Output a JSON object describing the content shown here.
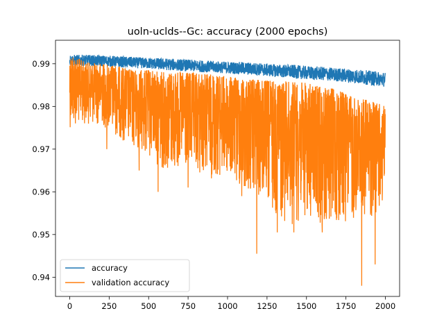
{
  "chart_data": {
    "type": "line",
    "title": "uoln-uclds--Gc: accuracy (2000 epochs)",
    "xlabel": "",
    "ylabel": "",
    "xlim": [
      -90,
      2090
    ],
    "ylim": [
      0.9355,
      0.9955
    ],
    "x_ticks": [
      0,
      250,
      500,
      750,
      1000,
      1250,
      1500,
      1750,
      2000
    ],
    "y_ticks": [
      0.94,
      0.95,
      0.96,
      0.97,
      0.98,
      0.99
    ],
    "grid": false,
    "legend": {
      "placement": "lower-left",
      "entries": [
        "accuracy",
        "validation accuracy"
      ]
    },
    "series": [
      {
        "name": "accuracy",
        "color": "#1f77b4",
        "epochs": 2000,
        "x": [
          0,
          100,
          200,
          300,
          400,
          500,
          600,
          700,
          800,
          900,
          1000,
          1100,
          1200,
          1300,
          1400,
          1500,
          1600,
          1700,
          1800,
          1900,
          2000
        ],
        "mean": [
          0.9908,
          0.9908,
          0.9907,
          0.9905,
          0.9903,
          0.9901,
          0.9899,
          0.9897,
          0.9895,
          0.9893,
          0.9891,
          0.9889,
          0.9887,
          0.9884,
          0.9882,
          0.9879,
          0.9877,
          0.9874,
          0.9871,
          0.9867,
          0.9863
        ],
        "band": [
          0.0013,
          0.0013,
          0.0013,
          0.0013,
          0.0013,
          0.0013,
          0.0014,
          0.0014,
          0.0014,
          0.0014,
          0.0014,
          0.0015,
          0.0015,
          0.0015,
          0.0016,
          0.0016,
          0.0016,
          0.0016,
          0.0017,
          0.0017,
          0.0017
        ]
      },
      {
        "name": "validation accuracy",
        "color": "#ff7f0e",
        "epochs": 2000,
        "x": [
          0,
          100,
          200,
          300,
          400,
          500,
          600,
          700,
          800,
          900,
          1000,
          1100,
          1200,
          1300,
          1400,
          1500,
          1600,
          1700,
          1800,
          1900,
          2000
        ],
        "upper": [
          0.9925,
          0.9903,
          0.99,
          0.9895,
          0.9885,
          0.9885,
          0.988,
          0.988,
          0.9878,
          0.9875,
          0.987,
          0.9865,
          0.9862,
          0.986,
          0.9858,
          0.9855,
          0.9845,
          0.984,
          0.982,
          0.9815,
          0.98
        ],
        "lower": [
          0.975,
          0.976,
          0.9755,
          0.973,
          0.97,
          0.968,
          0.965,
          0.965,
          0.964,
          0.963,
          0.963,
          0.96,
          0.958,
          0.955,
          0.952,
          0.954,
          0.952,
          0.952,
          0.953,
          0.954,
          0.956
        ],
        "spikes": [
          {
            "x": 235,
            "y": 0.97
          },
          {
            "x": 440,
            "y": 0.965
          },
          {
            "x": 560,
            "y": 0.96
          },
          {
            "x": 750,
            "y": 0.961
          },
          {
            "x": 1090,
            "y": 0.959
          },
          {
            "x": 1185,
            "y": 0.9455
          },
          {
            "x": 1315,
            "y": 0.9505
          },
          {
            "x": 1420,
            "y": 0.9505
          },
          {
            "x": 1600,
            "y": 0.9505
          },
          {
            "x": 1850,
            "y": 0.938
          },
          {
            "x": 1935,
            "y": 0.943
          },
          {
            "x": 1980,
            "y": 0.958
          }
        ]
      }
    ]
  }
}
